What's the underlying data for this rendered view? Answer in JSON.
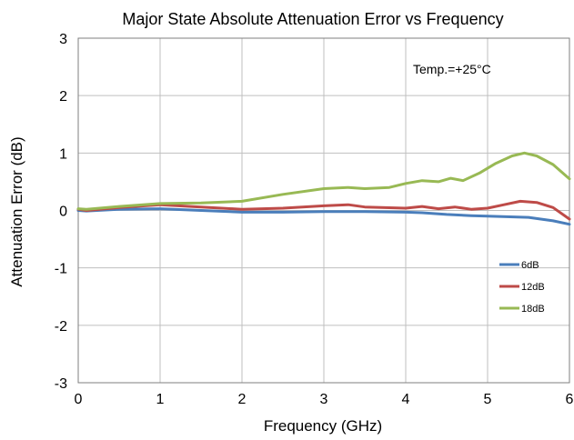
{
  "chart_data": {
    "type": "line",
    "title": "Major State Absolute Attenuation Error vs Frequency",
    "xlabel": "Frequency (GHz)",
    "ylabel": "Attenuation Error (dB)",
    "xlim": [
      0,
      6
    ],
    "ylim": [
      -3,
      3
    ],
    "xticks": [
      0,
      1,
      2,
      3,
      4,
      5,
      6
    ],
    "yticks": [
      -3,
      -2,
      -1,
      0,
      1,
      2,
      3
    ],
    "grid": true,
    "legend_position": "right",
    "annotation": "Temp.=+25°C",
    "series": [
      {
        "name": "6dB",
        "color": "#4a7ebb",
        "x": [
          0,
          0.1,
          0.5,
          1.0,
          1.5,
          2.0,
          2.5,
          3.0,
          3.5,
          4.0,
          4.2,
          4.5,
          4.8,
          5.0,
          5.5,
          5.8,
          6.0
        ],
        "y": [
          0.0,
          -0.01,
          0.02,
          0.03,
          0.0,
          -0.03,
          -0.03,
          -0.02,
          -0.02,
          -0.03,
          -0.04,
          -0.07,
          -0.09,
          -0.1,
          -0.12,
          -0.18,
          -0.24
        ]
      },
      {
        "name": "12dB",
        "color": "#be4b48",
        "x": [
          0,
          0.1,
          0.5,
          1.0,
          1.5,
          2.0,
          2.5,
          3.0,
          3.3,
          3.5,
          4.0,
          4.2,
          4.4,
          4.6,
          4.8,
          5.0,
          5.2,
          5.4,
          5.6,
          5.8,
          6.0
        ],
        "y": [
          0.02,
          0.0,
          0.05,
          0.1,
          0.06,
          0.02,
          0.04,
          0.08,
          0.1,
          0.06,
          0.04,
          0.07,
          0.03,
          0.06,
          0.02,
          0.04,
          0.1,
          0.16,
          0.14,
          0.05,
          -0.15
        ]
      },
      {
        "name": "18dB",
        "color": "#98b954",
        "x": [
          0,
          0.1,
          0.5,
          1.0,
          1.5,
          2.0,
          2.5,
          3.0,
          3.3,
          3.5,
          3.8,
          4.0,
          4.2,
          4.4,
          4.55,
          4.7,
          4.9,
          5.1,
          5.3,
          5.45,
          5.6,
          5.8,
          6.0
        ],
        "y": [
          0.03,
          0.02,
          0.07,
          0.12,
          0.13,
          0.16,
          0.28,
          0.38,
          0.4,
          0.38,
          0.4,
          0.47,
          0.52,
          0.5,
          0.56,
          0.52,
          0.65,
          0.82,
          0.95,
          1.0,
          0.95,
          0.8,
          0.55
        ]
      }
    ]
  }
}
